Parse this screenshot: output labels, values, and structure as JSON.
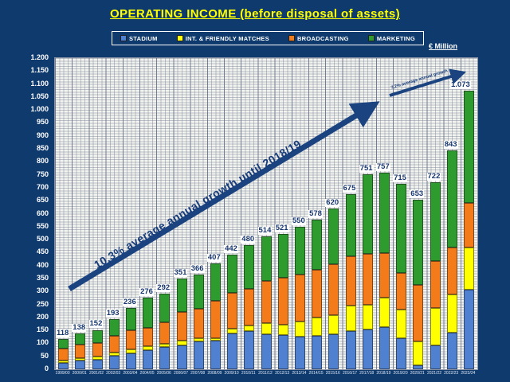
{
  "chart_data": {
    "type": "bar",
    "stacked": true,
    "title": "OPERATING INCOME (before disposal of assets)",
    "unit_label": "€ Million",
    "legend_position": "top",
    "grid": true,
    "ylim": [
      0,
      1200
    ],
    "y_tick_step": 50,
    "y_tick_labels": [
      "0",
      "50",
      "100",
      "150",
      "200",
      "250",
      "300",
      "350",
      "400",
      "450",
      "500",
      "550",
      "600",
      "650",
      "700",
      "750",
      "800",
      "850",
      "900",
      "950",
      "1.000",
      "1.050",
      "1.100",
      "1.150",
      "1.200"
    ],
    "categories": [
      "1999/00",
      "2000/01",
      "2001/02",
      "2002/03",
      "2003/04",
      "2004/05",
      "2005/06",
      "2006/07",
      "2007/08",
      "2008/09",
      "2009/10",
      "2010/11",
      "2011/12",
      "2012/13",
      "2013/14",
      "2014/15",
      "2015/16",
      "2016/17",
      "2017/18",
      "2018/19",
      "2019/20",
      "2020/21",
      "2021/22",
      "2022/23",
      "2023/24"
    ],
    "series": [
      {
        "name": "STADIUM",
        "color": "#4f81d0",
        "values": [
          25,
          35,
          38,
          52,
          62,
          75,
          85,
          92,
          107,
          111,
          138,
          148,
          135,
          132,
          125,
          130,
          135,
          148,
          155,
          163,
          120,
          15,
          92,
          142,
          308
        ]
      },
      {
        "name": "INT. & FRIENDLY MATCHES",
        "color": "#ffff00",
        "values": [
          8,
          8,
          10,
          12,
          14,
          15,
          12,
          20,
          13,
          9,
          19,
          21,
          43,
          40,
          60,
          70,
          75,
          98,
          95,
          114,
          110,
          92,
          145,
          146,
          162
        ]
      },
      {
        "name": "BROADCASTING",
        "color": "#f47b1a",
        "values": [
          47,
          52,
          54,
          66,
          74,
          70,
          85,
          108,
          114,
          145,
          139,
          142,
          164,
          181,
          180,
          185,
          195,
          190,
          196,
          172,
          140,
          219,
          182,
          183,
          170
        ]
      },
      {
        "name": "MARKETING",
        "color": "#2e9b2e",
        "values": [
          38,
          43,
          50,
          63,
          86,
          116,
          110,
          131,
          132,
          142,
          146,
          169,
          172,
          168,
          185,
          193,
          215,
          239,
          305,
          308,
          345,
          327,
          303,
          372,
          433
        ]
      }
    ],
    "totals": [
      118,
      138,
      152,
      193,
      236,
      276,
      292,
      351,
      366,
      407,
      442,
      480,
      514,
      521,
      550,
      578,
      620,
      675,
      751,
      757,
      715,
      653,
      722,
      843,
      1073
    ],
    "total_labels": [
      "118",
      "138",
      "152",
      "193",
      "236",
      "276",
      "292",
      "351",
      "366",
      "407",
      "442",
      "480",
      "514",
      "521",
      "550",
      "578",
      "620",
      "675",
      "751",
      "757",
      "715",
      "653",
      "722",
      "843",
      "1.073"
    ],
    "annotations": {
      "main_growth": "10,3% average annual growth until 2018/19",
      "recent_growth": "7,2% average annual growth"
    }
  },
  "colors": {
    "background": "#0f3a6d",
    "title": "#ffff00",
    "axis_text": "#ffffff",
    "arrow": "#1a437f",
    "data_label_text": "#16366e",
    "data_label_bg": "#ffffff"
  }
}
